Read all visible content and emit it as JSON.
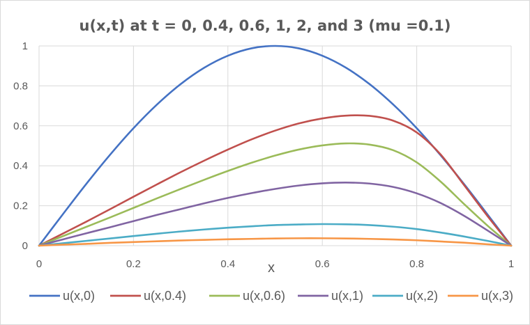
{
  "chart_data": {
    "type": "line",
    "title": "u(x,t) at t = 0, 0.4, 0.6, 1, 2, and 3  (mu =0.1)",
    "xlabel": "x",
    "ylabel": "",
    "xlim": [
      0,
      1
    ],
    "ylim": [
      0,
      1
    ],
    "xticks": [
      "0",
      "0.2",
      "0.4",
      "0.6",
      "0.8",
      "1"
    ],
    "yticks": [
      "0",
      "0.2",
      "0.4",
      "0.6",
      "0.8",
      "1"
    ],
    "grid": true,
    "legend_position": "bottom",
    "x": [
      0,
      0.05,
      0.1,
      0.15,
      0.2,
      0.25,
      0.3,
      0.35,
      0.4,
      0.45,
      0.5,
      0.55,
      0.6,
      0.65,
      0.7,
      0.75,
      0.8,
      0.85,
      0.9,
      0.95,
      1
    ],
    "series": [
      {
        "name": "u(x,0)",
        "color": "#4472c4",
        "values": [
          0,
          0.156,
          0.309,
          0.454,
          0.588,
          0.707,
          0.809,
          0.891,
          0.951,
          0.988,
          1.0,
          0.988,
          0.951,
          0.891,
          0.809,
          0.707,
          0.588,
          0.454,
          0.309,
          0.156,
          0
        ]
      },
      {
        "name": "u(x,0.4)",
        "color": "#c0504d",
        "values": [
          0,
          0.06,
          0.12,
          0.182,
          0.245,
          0.307,
          0.368,
          0.426,
          0.481,
          0.532,
          0.576,
          0.612,
          0.637,
          0.651,
          0.65,
          0.626,
          0.567,
          0.458,
          0.304,
          0.148,
          0
        ]
      },
      {
        "name": "u(x,0.6)",
        "color": "#9bbb59",
        "values": [
          0,
          0.047,
          0.094,
          0.141,
          0.189,
          0.237,
          0.284,
          0.33,
          0.374,
          0.415,
          0.451,
          0.481,
          0.502,
          0.512,
          0.506,
          0.478,
          0.417,
          0.322,
          0.209,
          0.1,
          0
        ]
      },
      {
        "name": "u(x,1)",
        "color": "#8064a2",
        "values": [
          0,
          0.031,
          0.062,
          0.092,
          0.123,
          0.154,
          0.183,
          0.212,
          0.239,
          0.263,
          0.284,
          0.301,
          0.312,
          0.316,
          0.311,
          0.294,
          0.262,
          0.214,
          0.15,
          0.076,
          0
        ]
      },
      {
        "name": "u(x,2)",
        "color": "#4bacc6",
        "values": [
          0,
          0.012,
          0.024,
          0.036,
          0.048,
          0.06,
          0.071,
          0.081,
          0.09,
          0.097,
          0.103,
          0.106,
          0.108,
          0.107,
          0.103,
          0.095,
          0.083,
          0.066,
          0.046,
          0.024,
          0
        ]
      },
      {
        "name": "u(x,3)",
        "color": "#f79646",
        "values": [
          0,
          0.005,
          0.009,
          0.014,
          0.018,
          0.022,
          0.026,
          0.029,
          0.032,
          0.034,
          0.036,
          0.037,
          0.037,
          0.036,
          0.034,
          0.031,
          0.027,
          0.021,
          0.015,
          0.007,
          0
        ]
      }
    ]
  }
}
